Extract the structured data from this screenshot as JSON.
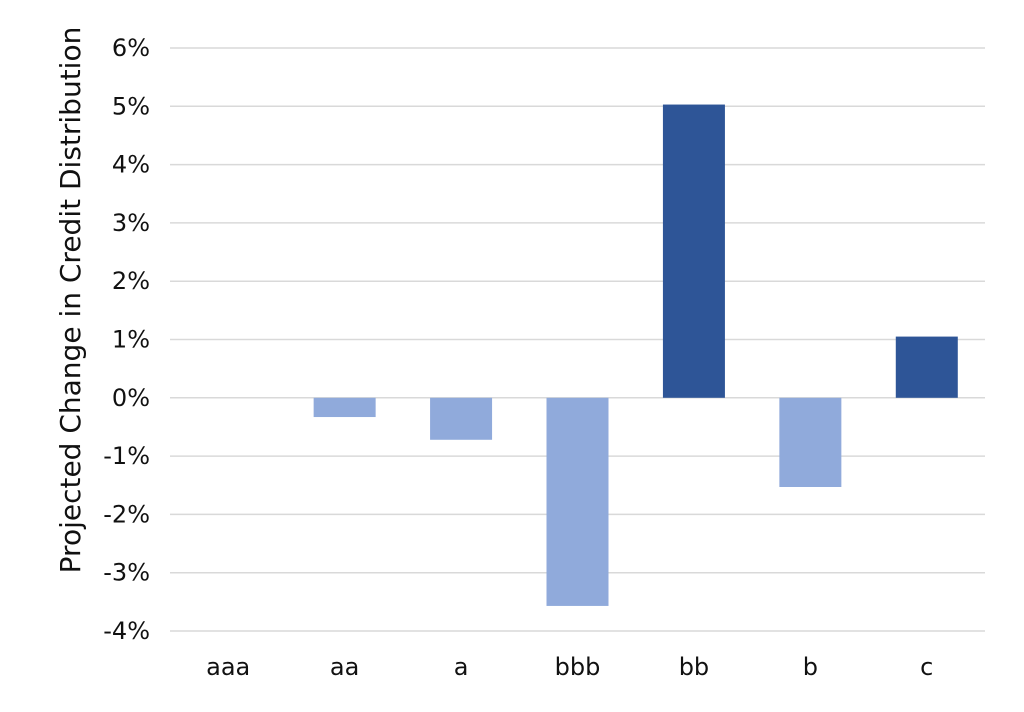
{
  "chart_data": {
    "type": "bar",
    "ylabel": "Projected Change in Credit Distribution",
    "ylim": [
      -4,
      6
    ],
    "yticks": [
      {
        "value": -4,
        "label": "-4%"
      },
      {
        "value": -3,
        "label": "-3%"
      },
      {
        "value": -2,
        "label": "-2%"
      },
      {
        "value": -1,
        "label": "-1%"
      },
      {
        "value": 0,
        "label": "0%"
      },
      {
        "value": 1,
        "label": "1%"
      },
      {
        "value": 2,
        "label": "2%"
      },
      {
        "value": 3,
        "label": "3%"
      },
      {
        "value": 4,
        "label": "4%"
      },
      {
        "value": 5,
        "label": "5%"
      },
      {
        "value": 6,
        "label": "6%"
      }
    ],
    "grid": true,
    "categories": [
      "aaa",
      "aa",
      "a",
      "bbb",
      "bb",
      "b",
      "c"
    ],
    "values": [
      0,
      -0.33,
      -0.72,
      -3.57,
      5.03,
      -1.53,
      1.05
    ],
    "colors": {
      "positive": "#2e5597",
      "negative": "#90aadb",
      "gridline": "#d9d9d9"
    }
  }
}
